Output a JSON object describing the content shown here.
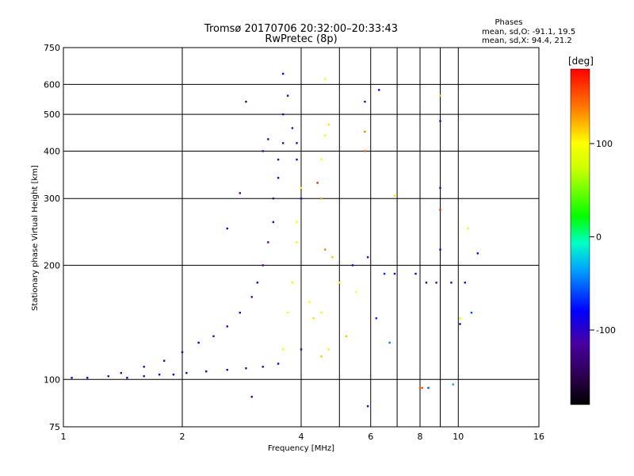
{
  "chart_data": {
    "type": "scatter",
    "title_line1": "Tromsø 20170706 20:32:00–20:33:43",
    "title_line2": "RwPretec (8p)",
    "xlabel": "Frequency [MHz]",
    "ylabel": "Stationary phase Virtual Height [km]",
    "x_scale": "log",
    "y_scale": "log",
    "xlim": [
      1,
      16
    ],
    "ylim": [
      75,
      750
    ],
    "grid": true,
    "x_ticks": [
      {
        "value": 1,
        "label": "1"
      },
      {
        "value": 2,
        "label": "2"
      },
      {
        "value": 4,
        "label": "4"
      },
      {
        "value": 6,
        "label": "6"
      },
      {
        "value": 8,
        "label": "8"
      },
      {
        "value": 10,
        "label": "10"
      },
      {
        "value": 16,
        "label": "16"
      }
    ],
    "x_extra_gridlines": [
      5,
      7,
      9
    ],
    "y_ticks": [
      {
        "value": 75,
        "label": "75"
      },
      {
        "value": 100,
        "label": "100"
      },
      {
        "value": 200,
        "label": "200"
      },
      {
        "value": 300,
        "label": "300"
      },
      {
        "value": 400,
        "label": "400"
      },
      {
        "value": 500,
        "label": "500"
      },
      {
        "value": 600,
        "label": "600"
      },
      {
        "value": 750,
        "label": "750"
      }
    ],
    "legend": {
      "title": "Phases",
      "line1": "mean, sd,O: -91.1, 19.5",
      "line2": "mean, sd,X:  94.4, 21.2",
      "placement": "top-right"
    },
    "colorbar": {
      "label": "[deg]",
      "range": [
        -180,
        180
      ],
      "ticks": [
        {
          "value": 100,
          "label": "100"
        },
        {
          "value": 0,
          "label": "0"
        },
        {
          "value": -100,
          "label": "-100"
        }
      ]
    },
    "series": [
      {
        "values": [
          {
            "x": 1.05,
            "y": 101,
            "phase": -110
          },
          {
            "x": 1.15,
            "y": 101,
            "phase": -100
          },
          {
            "x": 1.3,
            "y": 102,
            "phase": -120
          },
          {
            "x": 1.45,
            "y": 101,
            "phase": -95
          },
          {
            "x": 1.6,
            "y": 102,
            "phase": -115
          },
          {
            "x": 1.75,
            "y": 103,
            "phase": -100
          },
          {
            "x": 1.9,
            "y": 103,
            "phase": -90
          },
          {
            "x": 2.05,
            "y": 104,
            "phase": -105
          },
          {
            "x": 2.3,
            "y": 105,
            "phase": -100
          },
          {
            "x": 2.6,
            "y": 106,
            "phase": -95
          },
          {
            "x": 2.9,
            "y": 107,
            "phase": -110
          },
          {
            "x": 3.2,
            "y": 108,
            "phase": -100
          },
          {
            "x": 3.5,
            "y": 110,
            "phase": -90
          },
          {
            "x": 1.4,
            "y": 104,
            "phase": -125
          },
          {
            "x": 1.6,
            "y": 108,
            "phase": -110
          },
          {
            "x": 1.8,
            "y": 112,
            "phase": -100
          },
          {
            "x": 2.0,
            "y": 118,
            "phase": -95
          },
          {
            "x": 2.2,
            "y": 125,
            "phase": -85
          },
          {
            "x": 2.4,
            "y": 130,
            "phase": -100
          },
          {
            "x": 2.6,
            "y": 138,
            "phase": -110
          },
          {
            "x": 2.8,
            "y": 150,
            "phase": -100
          },
          {
            "x": 3.0,
            "y": 165,
            "phase": -120
          },
          {
            "x": 3.1,
            "y": 180,
            "phase": -110
          },
          {
            "x": 3.2,
            "y": 200,
            "phase": -115
          },
          {
            "x": 3.3,
            "y": 230,
            "phase": -120
          },
          {
            "x": 3.4,
            "y": 260,
            "phase": -110
          },
          {
            "x": 3.4,
            "y": 300,
            "phase": -125
          },
          {
            "x": 3.5,
            "y": 340,
            "phase": -110
          },
          {
            "x": 3.5,
            "y": 380,
            "phase": -120
          },
          {
            "x": 3.6,
            "y": 420,
            "phase": -105
          },
          {
            "x": 3.3,
            "y": 430,
            "phase": -130
          },
          {
            "x": 3.2,
            "y": 400,
            "phase": -115
          },
          {
            "x": 3.6,
            "y": 500,
            "phase": -95
          },
          {
            "x": 3.7,
            "y": 560,
            "phase": -100
          },
          {
            "x": 3.6,
            "y": 640,
            "phase": -90
          },
          {
            "x": 3.8,
            "y": 460,
            "phase": -110
          },
          {
            "x": 3.9,
            "y": 420,
            "phase": -100
          },
          {
            "x": 3.9,
            "y": 380,
            "phase": -95
          },
          {
            "x": 4.0,
            "y": 120,
            "phase": -100
          },
          {
            "x": 4.0,
            "y": 300,
            "phase": -110
          },
          {
            "x": 2.9,
            "y": 540,
            "phase": -130
          },
          {
            "x": 3.0,
            "y": 90,
            "phase": -110
          },
          {
            "x": 2.6,
            "y": 250,
            "phase": -105
          },
          {
            "x": 2.8,
            "y": 310,
            "phase": -120
          }
        ]
      },
      {
        "values": [
          {
            "x": 3.6,
            "y": 120,
            "phase": 95
          },
          {
            "x": 3.7,
            "y": 150,
            "phase": 100
          },
          {
            "x": 3.8,
            "y": 180,
            "phase": 90
          },
          {
            "x": 3.9,
            "y": 230,
            "phase": 105
          },
          {
            "x": 3.9,
            "y": 260,
            "phase": 100
          },
          {
            "x": 4.0,
            "y": 320,
            "phase": 95
          },
          {
            "x": 4.2,
            "y": 160,
            "phase": 100
          },
          {
            "x": 4.3,
            "y": 145,
            "phase": 110
          },
          {
            "x": 4.5,
            "y": 150,
            "phase": 95
          },
          {
            "x": 4.5,
            "y": 115,
            "phase": 120
          },
          {
            "x": 4.7,
            "y": 120,
            "phase": 105
          },
          {
            "x": 4.5,
            "y": 380,
            "phase": 100
          },
          {
            "x": 4.6,
            "y": 440,
            "phase": 90
          },
          {
            "x": 4.7,
            "y": 470,
            "phase": 110
          },
          {
            "x": 4.6,
            "y": 620,
            "phase": 100
          },
          {
            "x": 4.5,
            "y": 300,
            "phase": 130
          },
          {
            "x": 4.6,
            "y": 220,
            "phase": 140
          },
          {
            "x": 5.0,
            "y": 180,
            "phase": 95
          },
          {
            "x": 5.2,
            "y": 130,
            "phase": 120
          },
          {
            "x": 5.8,
            "y": 400,
            "phase": 150
          },
          {
            "x": 5.8,
            "y": 450,
            "phase": 140
          },
          {
            "x": 6.9,
            "y": 305,
            "phase": 110
          },
          {
            "x": 8.0,
            "y": 95,
            "phase": 150
          },
          {
            "x": 9.0,
            "y": 560,
            "phase": 115
          },
          {
            "x": 9.0,
            "y": 280,
            "phase": 170
          },
          {
            "x": 10.1,
            "y": 145,
            "phase": 80
          },
          {
            "x": 10.6,
            "y": 250,
            "phase": 90
          },
          {
            "x": 5.5,
            "y": 170,
            "phase": 100
          },
          {
            "x": 4.8,
            "y": 210,
            "phase": 120
          },
          {
            "x": 4.4,
            "y": 330,
            "phase": 170
          }
        ]
      },
      {
        "values": [
          {
            "x": 5.4,
            "y": 200,
            "phase": -95
          },
          {
            "x": 5.8,
            "y": 540,
            "phase": -110
          },
          {
            "x": 5.9,
            "y": 210,
            "phase": -120
          },
          {
            "x": 6.3,
            "y": 580,
            "phase": -80
          },
          {
            "x": 6.5,
            "y": 190,
            "phase": -70
          },
          {
            "x": 6.9,
            "y": 190,
            "phase": -90
          },
          {
            "x": 7.8,
            "y": 190,
            "phase": -80
          },
          {
            "x": 8.3,
            "y": 180,
            "phase": -130
          },
          {
            "x": 8.8,
            "y": 180,
            "phase": -120
          },
          {
            "x": 9.0,
            "y": 480,
            "phase": -100
          },
          {
            "x": 9.0,
            "y": 320,
            "phase": -110
          },
          {
            "x": 9.0,
            "y": 220,
            "phase": -100
          },
          {
            "x": 9.6,
            "y": 180,
            "phase": -110
          },
          {
            "x": 10.4,
            "y": 180,
            "phase": -100
          },
          {
            "x": 10.1,
            "y": 140,
            "phase": -140
          },
          {
            "x": 11.2,
            "y": 215,
            "phase": -90
          },
          {
            "x": 5.9,
            "y": 85,
            "phase": -100
          },
          {
            "x": 8.4,
            "y": 95,
            "phase": -60
          },
          {
            "x": 9.7,
            "y": 97,
            "phase": -40
          },
          {
            "x": 6.2,
            "y": 145,
            "phase": -70
          },
          {
            "x": 6.7,
            "y": 125,
            "phase": -50
          },
          {
            "x": 8.1,
            "y": 95,
            "phase": 160
          },
          {
            "x": 10.8,
            "y": 150,
            "phase": -60
          }
        ]
      }
    ]
  }
}
